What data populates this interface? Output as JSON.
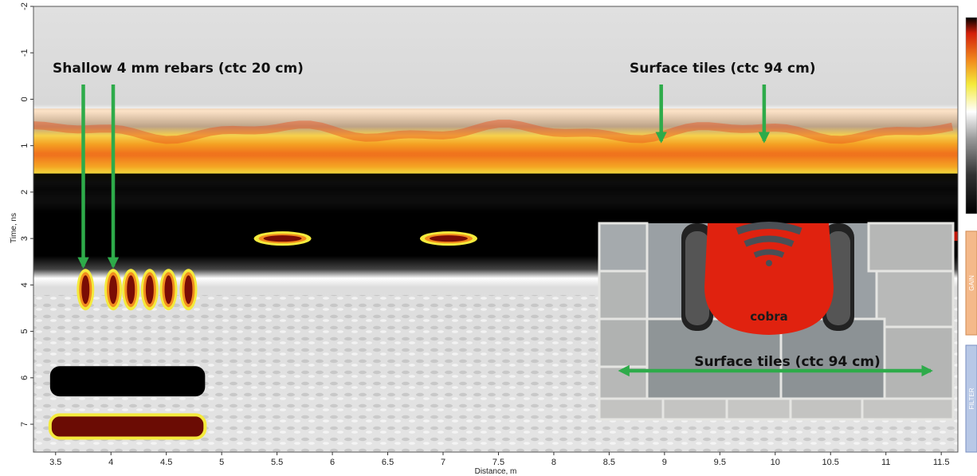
{
  "chart_data": {
    "type": "heatmap",
    "title": "",
    "xlabel": "Distance, m",
    "ylabel": "Time, ns",
    "xlim": [
      3.3,
      11.65
    ],
    "ylim": [
      7.6,
      -2.0
    ],
    "x_ticks": [
      "3.5",
      "4",
      "4.5",
      "5",
      "5.5",
      "6",
      "6.5",
      "7",
      "7.5",
      "8",
      "8.5",
      "9",
      "9.5",
      "10",
      "10.5",
      "11",
      "11.5"
    ],
    "y_ticks": [
      "-2",
      "-1",
      "0",
      "1",
      "2",
      "3",
      "4",
      "5",
      "6",
      "7"
    ],
    "bands": [
      {
        "feature": "air",
        "t_start": -2.0,
        "t_end": 0.1,
        "color": "#dcdcdc"
      },
      {
        "feature": "surface reflection",
        "t_start": 0.2,
        "t_end": 1.2,
        "color": "#f28c1e"
      },
      {
        "feature": "dark band",
        "t_start": 1.6,
        "t_end": 2.6,
        "color": "#000000"
      },
      {
        "feature": "subsurface",
        "t_start": 2.7,
        "t_end": 7.6,
        "color": "#e6e6e6"
      }
    ],
    "reflections": [
      {
        "x": 3.77,
        "t": 4.1
      },
      {
        "x": 4.02,
        "t": 4.1
      },
      {
        "x": 4.18,
        "t": 4.1
      },
      {
        "x": 4.35,
        "t": 4.1
      },
      {
        "x": 4.52,
        "t": 4.1
      },
      {
        "x": 4.7,
        "t": 4.1
      },
      {
        "x": 5.55,
        "t": 3.0
      },
      {
        "x": 7.05,
        "t": 3.0
      }
    ],
    "annotations": [
      {
        "text": "Shallow 4 mm rebars (ctc 20 cm)",
        "arrow_x": [
          3.75,
          4.02
        ],
        "arrow_tip_t": 3.6
      },
      {
        "text": "Surface tiles (ctc 94 cm)",
        "arrow_x": [
          8.97,
          9.9
        ],
        "arrow_tip_t": 0.9
      }
    ],
    "inset": {
      "caption": "Surface tiles (ctc 94 cm)",
      "logo": "cobra"
    },
    "side_panels": {
      "top": "color-scale",
      "middle": "GAIN",
      "bottom": "FILTER"
    },
    "colors": {
      "red": "#d31f0a",
      "orange": "#f28c1e",
      "yellow": "#f4ea3c",
      "arrow": "#2eab4a"
    }
  }
}
